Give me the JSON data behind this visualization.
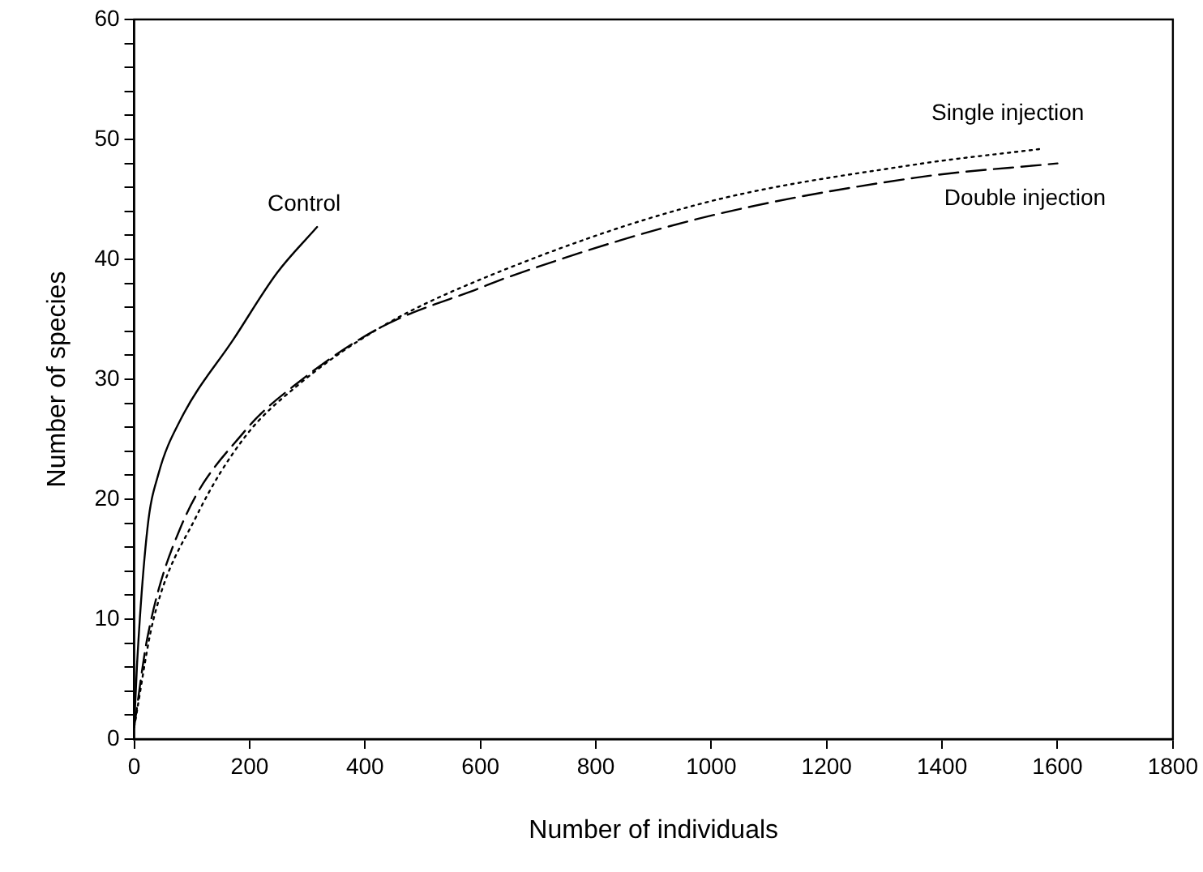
{
  "chart_data": {
    "type": "line",
    "xlabel": "Number of individuals",
    "ylabel": "Number of species",
    "xlim": [
      0,
      1800
    ],
    "xticks": [
      0,
      200,
      400,
      600,
      800,
      1000,
      1200,
      1400,
      1600,
      1800
    ],
    "ylim": [
      0,
      60
    ],
    "yticks": [
      0,
      {
        "value": 2,
        "label": null
      },
      {
        "value": 4,
        "label": null
      },
      {
        "value": 6,
        "label": null
      },
      {
        "value": 8,
        "label": null
      },
      10,
      {
        "value": 12,
        "label": null
      },
      {
        "value": 14,
        "label": null
      },
      {
        "value": 16,
        "label": null
      },
      {
        "value": 18,
        "label": null
      },
      20,
      {
        "value": 22,
        "label": null
      },
      {
        "value": 24,
        "label": null
      },
      {
        "value": 26,
        "label": null
      },
      {
        "value": 28,
        "label": null
      },
      30,
      {
        "value": 32,
        "label": null
      },
      {
        "value": 34,
        "label": null
      },
      {
        "value": 36,
        "label": null
      },
      {
        "value": 38,
        "label": null
      },
      40,
      {
        "value": 42,
        "label": null
      },
      {
        "value": 44,
        "label": null
      },
      {
        "value": 46,
        "label": null
      },
      {
        "value": 48,
        "label": null
      },
      50,
      {
        "value": 52,
        "label": null
      },
      {
        "value": 54,
        "label": null
      },
      {
        "value": 56,
        "label": null
      },
      {
        "value": 58,
        "label": null
      },
      60
    ],
    "marker": "none",
    "legend": false,
    "series": [
      {
        "name": "Control",
        "color": "#000000",
        "line_style": "solid",
        "x": [
          0,
          5,
          23,
          42,
          80,
          173,
          248,
          317
        ],
        "values": [
          1,
          6.3,
          17.6,
          22.1,
          26.6,
          33.4,
          38.9,
          42.7
        ]
      },
      {
        "name": "Single injection",
        "color": "#000000",
        "line_style": "dotted",
        "x": [
          0,
          33,
          108,
          192,
          286,
          426,
          604,
          979,
          1353,
          1570
        ],
        "values": [
          1,
          9.9,
          18.6,
          25.2,
          29.6,
          34.3,
          38.4,
          44.6,
          47.9,
          49.2
        ]
      },
      {
        "name": "Double injection",
        "color": "#000000",
        "line_style": "dashed",
        "x": [
          0,
          23,
          80,
          192,
          286,
          426,
          604,
          641,
          979,
          1353,
          1600
        ],
        "values": [
          1,
          8.5,
          17.6,
          25.7,
          29.8,
          34.3,
          37.7,
          38.4,
          43.4,
          46.8,
          48
        ]
      }
    ]
  }
}
